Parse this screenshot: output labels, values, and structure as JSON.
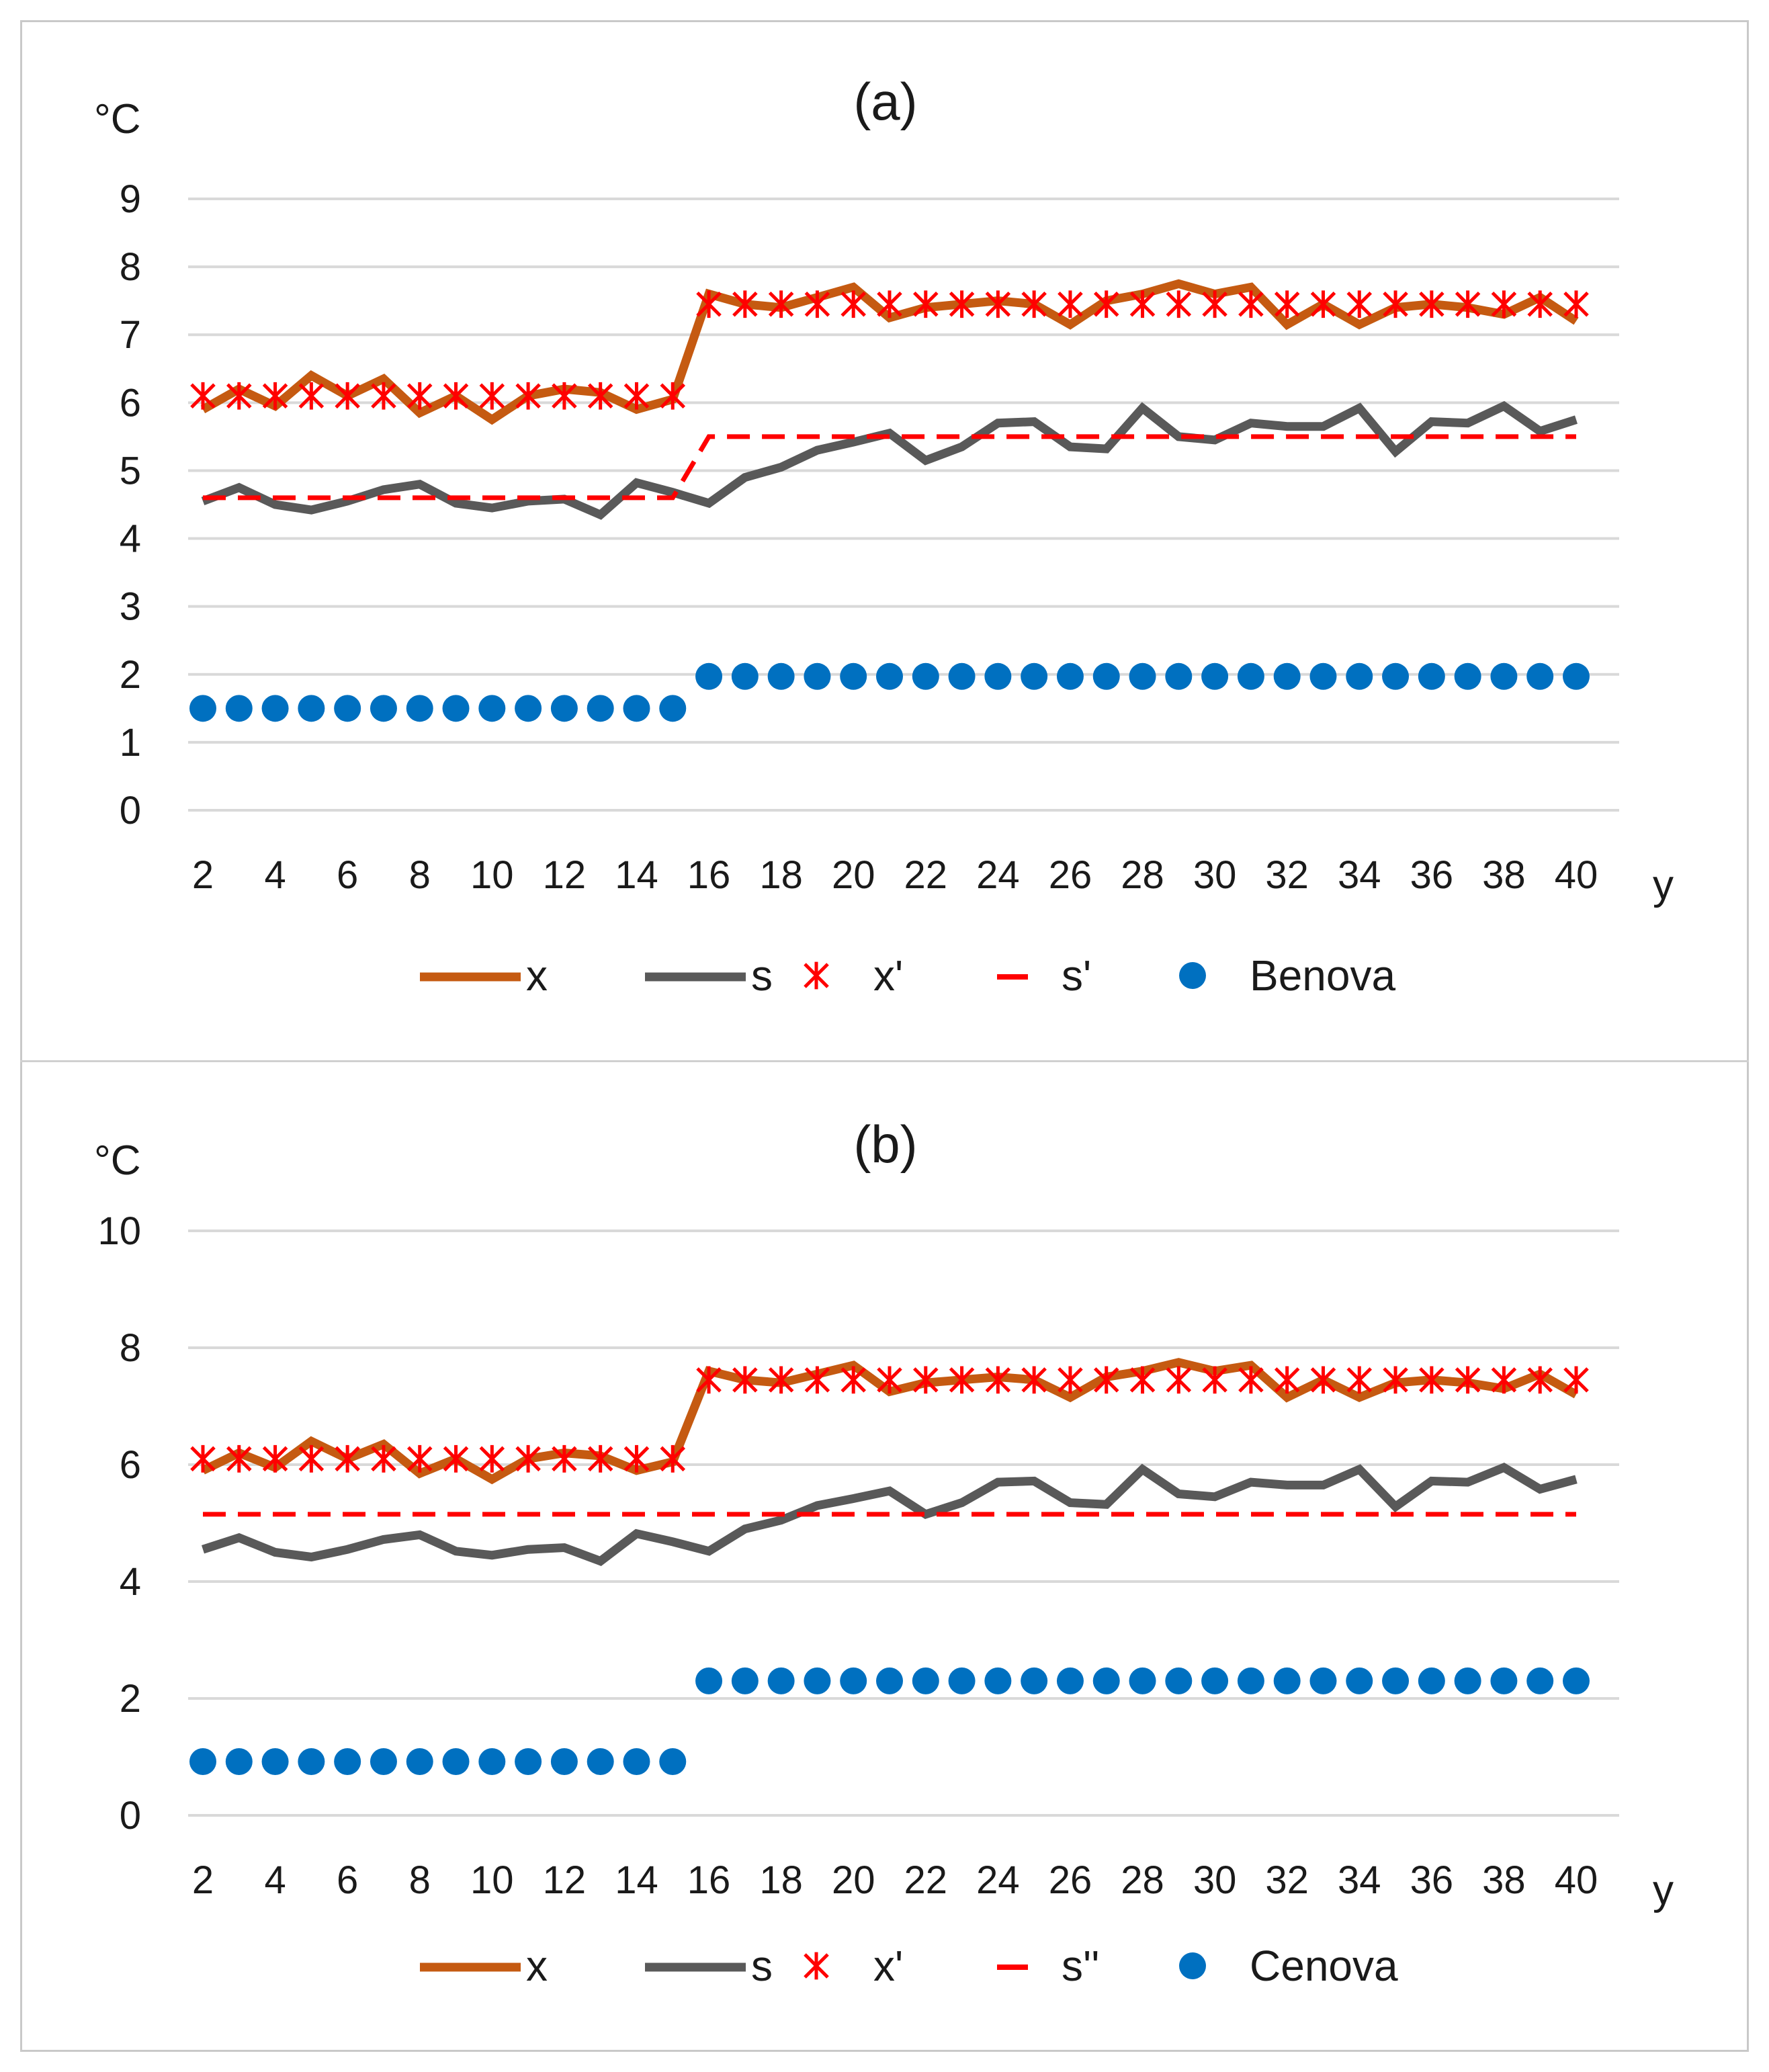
{
  "chart_data": [
    {
      "type": "line",
      "title": "(a)",
      "ylabel": "°C",
      "xlabel": "y",
      "ylim": [
        0,
        9
      ],
      "y_ticks": [
        0,
        1,
        2,
        3,
        4,
        5,
        6,
        7,
        8,
        9
      ],
      "x": [
        2,
        3,
        4,
        5,
        6,
        7,
        8,
        9,
        10,
        11,
        12,
        13,
        14,
        15,
        16,
        17,
        18,
        19,
        20,
        21,
        22,
        23,
        24,
        25,
        26,
        27,
        28,
        29,
        30,
        31,
        32,
        33,
        34,
        35,
        36,
        37,
        38,
        39,
        40
      ],
      "x_tick_labels": [
        "2",
        "4",
        "6",
        "8",
        "10",
        "12",
        "14",
        "16",
        "18",
        "20",
        "22",
        "24",
        "26",
        "28",
        "30",
        "32",
        "34",
        "36",
        "38",
        "40"
      ],
      "grid": true,
      "legend": "bottom",
      "series": [
        {
          "name": "x",
          "style": "line",
          "color": "#c55a11",
          "values": [
            5.9,
            6.2,
            5.95,
            6.4,
            6.1,
            6.35,
            5.85,
            6.1,
            5.75,
            6.1,
            6.2,
            6.15,
            5.9,
            6.05,
            7.6,
            7.45,
            7.4,
            7.55,
            7.7,
            7.25,
            7.4,
            7.45,
            7.5,
            7.45,
            7.15,
            7.5,
            7.6,
            7.75,
            7.6,
            7.7,
            7.15,
            7.45,
            7.15,
            7.4,
            7.45,
            7.4,
            7.3,
            7.55,
            7.2
          ]
        },
        {
          "name": "s",
          "style": "line",
          "color": "#595959",
          "values": [
            4.55,
            4.75,
            4.5,
            4.42,
            4.55,
            4.72,
            4.8,
            4.52,
            4.45,
            4.55,
            4.58,
            4.35,
            4.82,
            4.68,
            4.52,
            4.9,
            5.05,
            5.3,
            5.42,
            5.55,
            5.15,
            5.35,
            5.7,
            5.72,
            5.35,
            5.32,
            5.92,
            5.5,
            5.45,
            5.7,
            5.65,
            5.65,
            5.92,
            5.28,
            5.72,
            5.7,
            5.95,
            5.58,
            5.75
          ]
        },
        {
          "name": "x'",
          "style": "marker-x",
          "color": "#ff0000",
          "values": [
            6.1,
            6.1,
            6.1,
            6.1,
            6.1,
            6.1,
            6.1,
            6.1,
            6.1,
            6.1,
            6.1,
            6.1,
            6.1,
            6.1,
            7.45,
            7.45,
            7.45,
            7.45,
            7.45,
            7.45,
            7.45,
            7.45,
            7.45,
            7.45,
            7.45,
            7.45,
            7.45,
            7.45,
            7.45,
            7.45,
            7.45,
            7.45,
            7.45,
            7.45,
            7.45,
            7.45,
            7.45,
            7.45,
            7.45
          ]
        },
        {
          "name": "s'",
          "style": "dashed",
          "color": "#ff0000",
          "values": [
            4.6,
            4.6,
            4.6,
            4.6,
            4.6,
            4.6,
            4.6,
            4.6,
            4.6,
            4.6,
            4.6,
            4.6,
            4.6,
            4.6,
            5.5,
            5.5,
            5.5,
            5.5,
            5.5,
            5.5,
            5.5,
            5.5,
            5.5,
            5.5,
            5.5,
            5.5,
            5.5,
            5.5,
            5.5,
            5.5,
            5.5,
            5.5,
            5.5,
            5.5,
            5.5,
            5.5,
            5.5,
            5.5,
            5.5
          ]
        },
        {
          "name": "Benova",
          "style": "marker-dot",
          "color": "#0070c0",
          "values": [
            1.5,
            1.5,
            1.5,
            1.5,
            1.5,
            1.5,
            1.5,
            1.5,
            1.5,
            1.5,
            1.5,
            1.5,
            1.5,
            1.5,
            1.97,
            1.97,
            1.97,
            1.97,
            1.97,
            1.97,
            1.97,
            1.97,
            1.97,
            1.97,
            1.97,
            1.97,
            1.97,
            1.97,
            1.97,
            1.97,
            1.97,
            1.97,
            1.97,
            1.97,
            1.97,
            1.97,
            1.97,
            1.97,
            1.97
          ]
        }
      ]
    },
    {
      "type": "line",
      "title": "(b)",
      "ylabel": "°C",
      "xlabel": "y",
      "ylim": [
        0,
        10
      ],
      "y_ticks": [
        0,
        2,
        4,
        6,
        8,
        10
      ],
      "x": [
        2,
        3,
        4,
        5,
        6,
        7,
        8,
        9,
        10,
        11,
        12,
        13,
        14,
        15,
        16,
        17,
        18,
        19,
        20,
        21,
        22,
        23,
        24,
        25,
        26,
        27,
        28,
        29,
        30,
        31,
        32,
        33,
        34,
        35,
        36,
        37,
        38,
        39,
        40
      ],
      "x_tick_labels": [
        "2",
        "4",
        "6",
        "8",
        "10",
        "12",
        "14",
        "16",
        "18",
        "20",
        "22",
        "24",
        "26",
        "28",
        "30",
        "32",
        "34",
        "36",
        "38",
        "40"
      ],
      "grid": true,
      "legend": "bottom",
      "series": [
        {
          "name": "x",
          "style": "line",
          "color": "#c55a11",
          "values": [
            5.9,
            6.2,
            5.95,
            6.4,
            6.1,
            6.35,
            5.85,
            6.1,
            5.75,
            6.1,
            6.2,
            6.15,
            5.9,
            6.05,
            7.6,
            7.45,
            7.4,
            7.55,
            7.7,
            7.25,
            7.4,
            7.45,
            7.5,
            7.45,
            7.15,
            7.5,
            7.6,
            7.75,
            7.6,
            7.7,
            7.15,
            7.45,
            7.15,
            7.4,
            7.45,
            7.4,
            7.3,
            7.55,
            7.2
          ]
        },
        {
          "name": "s",
          "style": "line",
          "color": "#595959",
          "values": [
            4.55,
            4.75,
            4.5,
            4.42,
            4.55,
            4.72,
            4.8,
            4.52,
            4.45,
            4.55,
            4.58,
            4.35,
            4.82,
            4.68,
            4.52,
            4.9,
            5.05,
            5.3,
            5.42,
            5.55,
            5.15,
            5.35,
            5.7,
            5.72,
            5.35,
            5.32,
            5.92,
            5.5,
            5.45,
            5.7,
            5.65,
            5.65,
            5.92,
            5.28,
            5.72,
            5.7,
            5.95,
            5.58,
            5.75
          ]
        },
        {
          "name": "x'",
          "style": "marker-x",
          "color": "#ff0000",
          "values": [
            6.1,
            6.1,
            6.1,
            6.1,
            6.1,
            6.1,
            6.1,
            6.1,
            6.1,
            6.1,
            6.1,
            6.1,
            6.1,
            6.1,
            7.45,
            7.45,
            7.45,
            7.45,
            7.45,
            7.45,
            7.45,
            7.45,
            7.45,
            7.45,
            7.45,
            7.45,
            7.45,
            7.45,
            7.45,
            7.45,
            7.45,
            7.45,
            7.45,
            7.45,
            7.45,
            7.45,
            7.45,
            7.45,
            7.45
          ]
        },
        {
          "name": "s''",
          "style": "dashed",
          "color": "#ff0000",
          "values": [
            5.15,
            5.15,
            5.15,
            5.15,
            5.15,
            5.15,
            5.15,
            5.15,
            5.15,
            5.15,
            5.15,
            5.15,
            5.15,
            5.15,
            5.15,
            5.15,
            5.15,
            5.15,
            5.15,
            5.15,
            5.15,
            5.15,
            5.15,
            5.15,
            5.15,
            5.15,
            5.15,
            5.15,
            5.15,
            5.15,
            5.15,
            5.15,
            5.15,
            5.15,
            5.15,
            5.15,
            5.15,
            5.15,
            5.15
          ]
        },
        {
          "name": "Cenova",
          "style": "marker-dot",
          "color": "#0070c0",
          "values": [
            0.92,
            0.92,
            0.92,
            0.92,
            0.92,
            0.92,
            0.92,
            0.92,
            0.92,
            0.92,
            0.92,
            0.92,
            0.92,
            0.92,
            2.3,
            2.3,
            2.3,
            2.3,
            2.3,
            2.3,
            2.3,
            2.3,
            2.3,
            2.3,
            2.3,
            2.3,
            2.3,
            2.3,
            2.3,
            2.3,
            2.3,
            2.3,
            2.3,
            2.3,
            2.3,
            2.3,
            2.3,
            2.3,
            2.3
          ]
        }
      ]
    }
  ]
}
